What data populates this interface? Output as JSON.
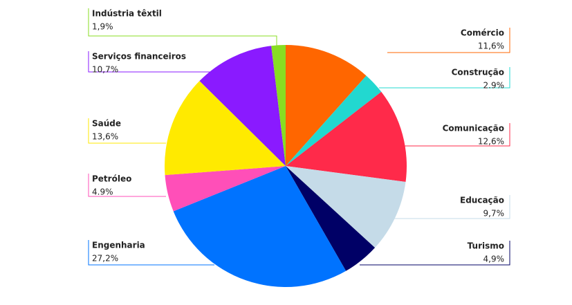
{
  "chart_data": {
    "type": "pie",
    "categories": [
      "Comércio",
      "Construção",
      "Comunicação",
      "Educação",
      "Turismo",
      "Engenharia",
      "Petróleo",
      "Saúde",
      "Serviços financeiros",
      "Indústria têxtil"
    ],
    "values": [
      11.6,
      2.9,
      12.6,
      9.7,
      4.9,
      27.2,
      4.9,
      13.6,
      10.7,
      1.9
    ],
    "value_labels": [
      "11,6%",
      "2.9%",
      "12,6%",
      "9,7%",
      "4,9%",
      "27,2%",
      "4.9%",
      "13,6%",
      "10,7%",
      "1,9%"
    ],
    "colors": [
      "#ff6600",
      "#22d8d0",
      "#ff2a4a",
      "#c5dbe8",
      "#000066",
      "#0073ff",
      "#ff4fb8",
      "#ffea00",
      "#8a1aff",
      "#88dd22"
    ]
  }
}
